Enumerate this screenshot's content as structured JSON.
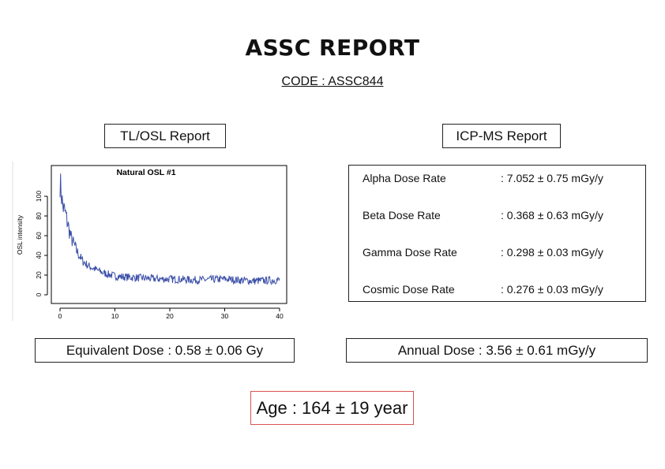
{
  "title": "ASSC REPORT",
  "code": "CODE : ASSC844",
  "tl_osl": {
    "header": "TL/OSL Report"
  },
  "icp_ms": {
    "header": "ICP-MS Report",
    "rows": [
      {
        "label": "Alpha Dose Rate",
        "value": ": 7.052 ± 0.75 mGy/y"
      },
      {
        "label": "Beta Dose Rate",
        "value": ": 0.368 ± 0.63 mGy/y"
      },
      {
        "label": "Gamma Dose Rate",
        "value": ": 0.298 ± 0.03 mGy/y"
      },
      {
        "label": "Cosmic Dose Rate",
        "value": ": 0.276 ± 0.03 mGy/y"
      }
    ]
  },
  "equivalent_dose": "Equivalent Dose : 0.58 ± 0.06 Gy",
  "annual_dose": "Annual Dose : 3.56 ± 0.61 mGy/y",
  "age": "Age : 164 ± 19 year",
  "chart_data": {
    "type": "line",
    "title": "Natural OSL #1",
    "xlabel": "",
    "ylabel": "OSL intensity",
    "xlim": [
      0,
      40
    ],
    "ylim": [
      0,
      120
    ],
    "x_ticks": [
      "0",
      "10",
      "20",
      "30",
      "40"
    ],
    "y_ticks": [
      "0",
      "20",
      "40",
      "60",
      "80",
      "100"
    ],
    "line_color": "#3b4fa8",
    "series": [
      {
        "x": [
          0,
          0.5,
          1,
          1.5,
          2,
          3,
          4,
          5,
          6,
          8,
          10,
          12,
          15,
          18,
          20,
          25,
          30,
          35,
          40
        ],
        "y": [
          115,
          90,
          82,
          70,
          58,
          45,
          35,
          30,
          27,
          22,
          19,
          18,
          17,
          16,
          16,
          15,
          16,
          14,
          15
        ]
      }
    ]
  }
}
